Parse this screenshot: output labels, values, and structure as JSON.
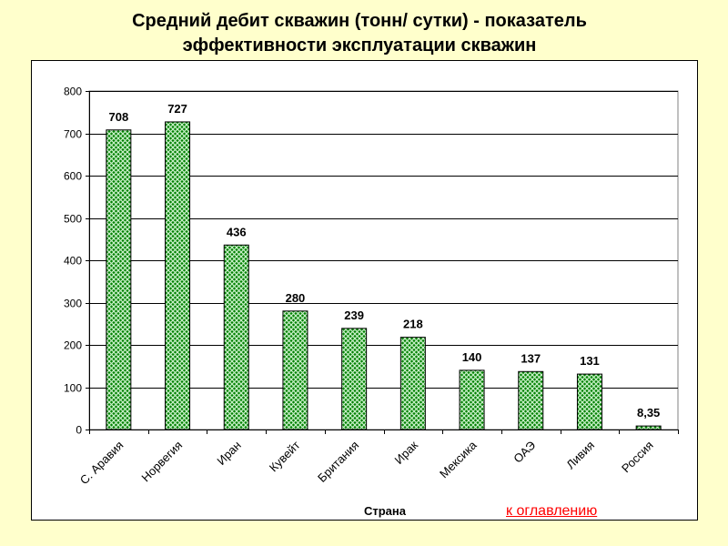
{
  "slide": {
    "title_line1": "Средний дебит скважин (тонн/ сутки) - показатель",
    "title_line2": "эффективности эксплуатации скважин",
    "toc_link": "к оглавлению"
  },
  "chart_data": {
    "type": "bar",
    "title": "",
    "xlabel": "Страна",
    "ylabel": "",
    "ylim": [
      0,
      800
    ],
    "yticks": [
      0,
      100,
      200,
      300,
      400,
      500,
      600,
      700,
      800
    ],
    "grid": true,
    "categories": [
      "С. Аравия",
      "Норвегия",
      "Иран",
      "Кувейт",
      "Британия",
      "Ирак",
      "Мексика",
      "ОАЭ",
      "Ливия",
      "Россия"
    ],
    "values": [
      708,
      727,
      436,
      280,
      239,
      218,
      140,
      137,
      131,
      8.35
    ],
    "value_labels": [
      "708",
      "727",
      "436",
      "280",
      "239",
      "218",
      "140",
      "137",
      "131",
      "8,35"
    ],
    "bar_color": "#008000",
    "bar_pattern_color": "#c8f0c8"
  }
}
